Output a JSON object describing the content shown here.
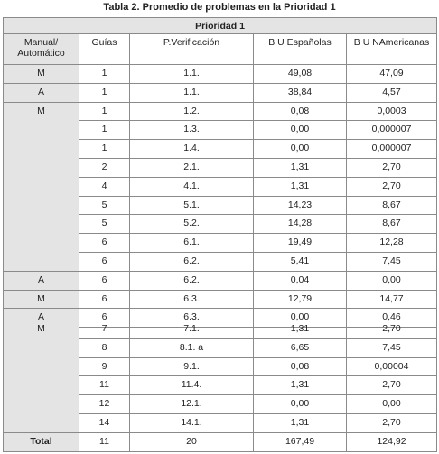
{
  "title": "Tabla 2. Promedio de problemas en la Prioridad 1",
  "group_header": "Prioridad 1",
  "columns": [
    "Manual/ Automático",
    "Guías",
    "P.Verificación",
    "B U Españolas",
    "B U NAmericanas"
  ],
  "block1": [
    [
      "M",
      "1",
      "1.1.",
      "49,08",
      "47,09"
    ],
    [
      "A",
      "1",
      "1.1.",
      "38,84",
      "4,57"
    ],
    [
      "M",
      "1",
      "1.2.",
      "0,08",
      "0,0003"
    ],
    [
      "1",
      "1.3.",
      "0,00",
      "0,000007"
    ],
    [
      "1",
      "1.4.",
      "0,00",
      "0,000007"
    ],
    [
      "2",
      "2.1.",
      "1,31",
      "2,70"
    ],
    [
      "4",
      "4.1.",
      "1,31",
      "2,70"
    ],
    [
      "5",
      "5.1.",
      "14,23",
      "8,67"
    ],
    [
      "5",
      "5.2.",
      "14,28",
      "8,67"
    ],
    [
      "6",
      "6.1.",
      "19,49",
      "12,28"
    ],
    [
      "6",
      "6.2.",
      "5,41",
      "7,45"
    ],
    [
      "A",
      "6",
      "6.2.",
      "0,04",
      "0,00"
    ],
    [
      "M",
      "6",
      "6.3.",
      "12,79",
      "14,77"
    ],
    [
      "A",
      "6",
      "6.3.",
      "0,00",
      "0,46"
    ]
  ],
  "block2": [
    [
      "M",
      "7",
      "7.1.",
      "1,31",
      "2,70"
    ],
    [
      "8",
      "8.1. a",
      "6,65",
      "7,45"
    ],
    [
      "9",
      "9.1.",
      "0,08",
      "0,00004"
    ],
    [
      "11",
      "11.4.",
      "1,31",
      "2,70"
    ],
    [
      "12",
      "12.1.",
      "0,00",
      "0,00"
    ],
    [
      "14",
      "14.1.",
      "1,31",
      "2,70"
    ]
  ],
  "total": [
    "Total",
    "11",
    "20",
    "167,49",
    "124,92"
  ]
}
